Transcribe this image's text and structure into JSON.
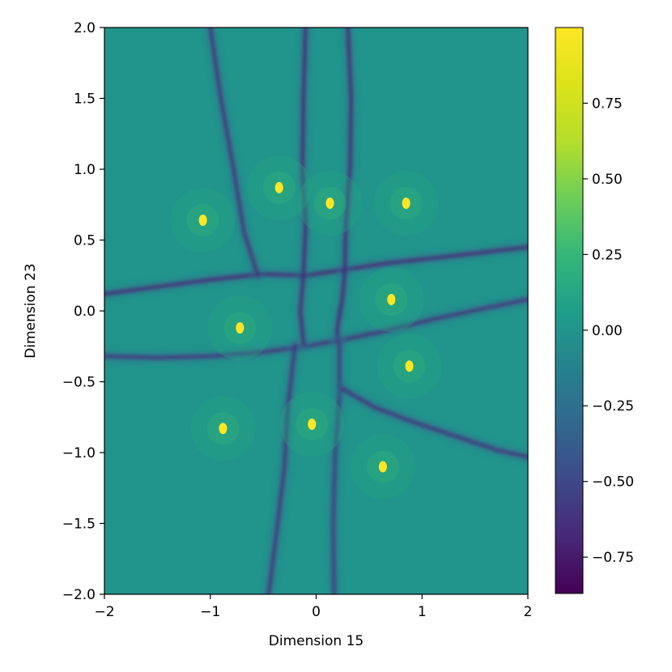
{
  "chart_data": {
    "type": "heatmap",
    "title": "",
    "xlabel": "Dimension 15",
    "ylabel": "Dimension 23",
    "xlim": [
      -2,
      2
    ],
    "ylim": [
      -2,
      2
    ],
    "x_ticks": [
      {
        "value": -2,
        "label": "−2"
      },
      {
        "value": -1,
        "label": "−1"
      },
      {
        "value": 0,
        "label": "0"
      },
      {
        "value": 1,
        "label": "1"
      },
      {
        "value": 2,
        "label": "2"
      }
    ],
    "y_ticks": [
      {
        "value": 2.0,
        "label": "2.0"
      },
      {
        "value": 1.5,
        "label": "1.5"
      },
      {
        "value": 1.0,
        "label": "1.0"
      },
      {
        "value": 0.5,
        "label": "0.5"
      },
      {
        "value": 0.0,
        "label": "0.0"
      },
      {
        "value": -0.5,
        "label": "−0.5"
      },
      {
        "value": -1.0,
        "label": "−1.0"
      },
      {
        "value": -1.5,
        "label": "−1.5"
      },
      {
        "value": -2.0,
        "label": "−2.0"
      }
    ],
    "grid": false,
    "colormap": "viridis",
    "background_value": 0.0,
    "colorbar": {
      "vmin": -0.87,
      "vmax": 1.0,
      "ticks": [
        {
          "value": 0.75,
          "label": "0.75"
        },
        {
          "value": 0.5,
          "label": "0.50"
        },
        {
          "value": 0.25,
          "label": "0.25"
        },
        {
          "value": 0.0,
          "label": "0.00"
        },
        {
          "value": -0.25,
          "label": "−0.25"
        },
        {
          "value": -0.5,
          "label": "−0.50"
        },
        {
          "value": -0.75,
          "label": "−0.75"
        }
      ]
    },
    "peaks": [
      {
        "x": -1.07,
        "y": 0.64,
        "value": 1.0
      },
      {
        "x": -0.35,
        "y": 0.87,
        "value": 1.0
      },
      {
        "x": 0.13,
        "y": 0.76,
        "value": 1.0
      },
      {
        "x": 0.85,
        "y": 0.76,
        "value": 1.0
      },
      {
        "x": 0.71,
        "y": 0.08,
        "value": 1.0
      },
      {
        "x": -0.72,
        "y": -0.12,
        "value": 1.0
      },
      {
        "x": 0.88,
        "y": -0.39,
        "value": 1.0
      },
      {
        "x": -0.88,
        "y": -0.83,
        "value": 1.0
      },
      {
        "x": -0.04,
        "y": -0.8,
        "value": 1.0
      },
      {
        "x": 0.63,
        "y": -1.1,
        "value": 1.0
      }
    ],
    "ridges": [
      {
        "value": -0.65,
        "points": [
          [
            -2.0,
            0.12
          ],
          [
            -1.5,
            0.17
          ],
          [
            -1.0,
            0.22
          ],
          [
            -0.5,
            0.26
          ],
          [
            -0.1,
            0.25
          ],
          [
            0.25,
            0.29
          ],
          [
            0.7,
            0.34
          ],
          [
            1.2,
            0.38
          ],
          [
            2.0,
            0.45
          ]
        ]
      },
      {
        "value": -0.6,
        "points": [
          [
            -2.0,
            -0.32
          ],
          [
            -1.5,
            -0.33
          ],
          [
            -1.0,
            -0.32
          ],
          [
            -0.5,
            -0.29
          ],
          [
            -0.1,
            -0.25
          ],
          [
            0.2,
            -0.21
          ],
          [
            0.6,
            -0.15
          ],
          [
            1.1,
            -0.06
          ],
          [
            1.6,
            0.02
          ],
          [
            2.0,
            0.08
          ]
        ]
      },
      {
        "value": -0.6,
        "points": [
          [
            -1.0,
            2.0
          ],
          [
            -0.9,
            1.5
          ],
          [
            -0.78,
            1.0
          ],
          [
            -0.68,
            0.55
          ],
          [
            -0.55,
            0.25
          ]
        ]
      },
      {
        "value": -0.65,
        "points": [
          [
            -0.1,
            2.0
          ],
          [
            -0.12,
            1.5
          ],
          [
            -0.13,
            1.0
          ],
          [
            -0.1,
            0.6
          ],
          [
            -0.12,
            0.25
          ],
          [
            -0.15,
            0.0
          ],
          [
            -0.12,
            -0.23
          ]
        ]
      },
      {
        "value": -0.65,
        "points": [
          [
            0.3,
            2.0
          ],
          [
            0.33,
            1.5
          ],
          [
            0.32,
            1.0
          ],
          [
            0.28,
            0.6
          ],
          [
            0.27,
            0.28
          ],
          [
            0.25,
            0.1
          ],
          [
            0.2,
            -0.12
          ],
          [
            0.2,
            -0.22
          ]
        ]
      },
      {
        "value": -0.6,
        "points": [
          [
            -0.2,
            -0.24
          ],
          [
            -0.27,
            -0.7
          ],
          [
            -0.3,
            -1.1
          ],
          [
            -0.38,
            -1.6
          ],
          [
            -0.45,
            -2.0
          ]
        ]
      },
      {
        "value": -0.55,
        "points": [
          [
            0.22,
            -0.22
          ],
          [
            0.22,
            -0.6
          ],
          [
            0.18,
            -1.0
          ],
          [
            0.16,
            -1.5
          ],
          [
            0.17,
            -2.0
          ]
        ]
      },
      {
        "value": -0.6,
        "points": [
          [
            0.25,
            -0.55
          ],
          [
            0.55,
            -0.68
          ],
          [
            0.9,
            -0.78
          ],
          [
            1.3,
            -0.88
          ],
          [
            1.7,
            -0.98
          ],
          [
            2.0,
            -1.03
          ]
        ]
      }
    ]
  }
}
